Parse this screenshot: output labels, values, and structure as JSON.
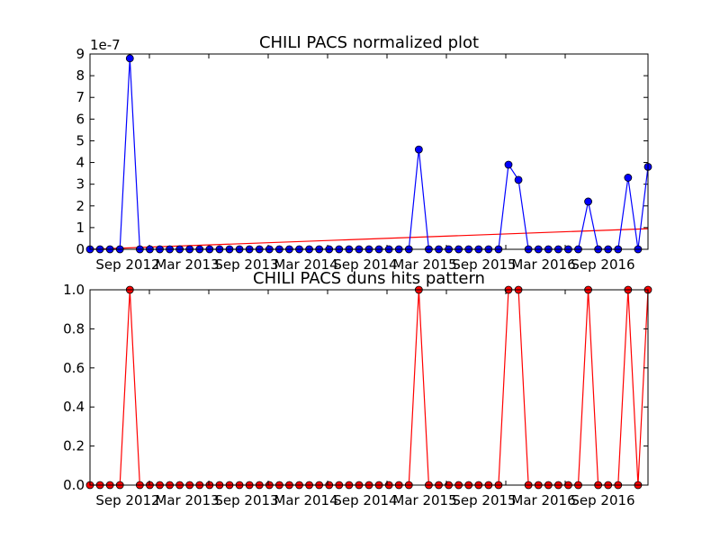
{
  "chart_data": [
    {
      "type": "line",
      "title": "CHILI PACS normalized plot",
      "xlabel": "",
      "ylabel": "",
      "y_offset_label": "1e-7",
      "x_tick_labels": [
        "Sep 2012",
        "Mar 2013",
        "Sep 2013",
        "Mar 2014",
        "Sep 2014",
        "Mar 2015",
        "Sep 2015",
        "Mar 2016",
        "Sep 2016"
      ],
      "y_tick_labels": [
        "0",
        "1",
        "2",
        "3",
        "4",
        "5",
        "6",
        "7",
        "8",
        "9"
      ],
      "ylim": [
        0,
        9
      ],
      "grid": false,
      "colors": {
        "series": "#0000ff",
        "trend": "#ff0000"
      },
      "series": [
        {
          "values": [
            0,
            0,
            0,
            0,
            8.8,
            0,
            0,
            0,
            0,
            0,
            0,
            0,
            0,
            0,
            0,
            0,
            0,
            0,
            0,
            0,
            0,
            0,
            0,
            0,
            0,
            0,
            0,
            0,
            0,
            0,
            0,
            0,
            0,
            4.6,
            0,
            0,
            0,
            0,
            0,
            0,
            0,
            0,
            3.9,
            3.2,
            0,
            0,
            0,
            0,
            0,
            0,
            2.2,
            0,
            0,
            0,
            3.3,
            0,
            3.8
          ]
        }
      ],
      "trend": {
        "start": 0.0,
        "end": 0.95
      }
    },
    {
      "type": "line",
      "title": "CHILI PACS duns hits pattern",
      "xlabel": "",
      "ylabel": "",
      "x_tick_labels": [
        "Sep 2012",
        "Mar 2013",
        "Sep 2013",
        "Mar 2014",
        "Sep 2014",
        "Mar 2015",
        "Sep 2015",
        "Mar 2016",
        "Sep 2016"
      ],
      "y_tick_labels": [
        "0.0",
        "0.2",
        "0.4",
        "0.6",
        "0.8",
        "1.0"
      ],
      "ylim": [
        0,
        1
      ],
      "grid": false,
      "colors": {
        "series": "#ff0000"
      },
      "series": [
        {
          "values": [
            0,
            0,
            0,
            0,
            1,
            0,
            0,
            0,
            0,
            0,
            0,
            0,
            0,
            0,
            0,
            0,
            0,
            0,
            0,
            0,
            0,
            0,
            0,
            0,
            0,
            0,
            0,
            0,
            0,
            0,
            0,
            0,
            0,
            1,
            0,
            0,
            0,
            0,
            0,
            0,
            0,
            0,
            1,
            1,
            0,
            0,
            0,
            0,
            0,
            0,
            1,
            0,
            0,
            0,
            1,
            0,
            1
          ]
        }
      ]
    }
  ]
}
